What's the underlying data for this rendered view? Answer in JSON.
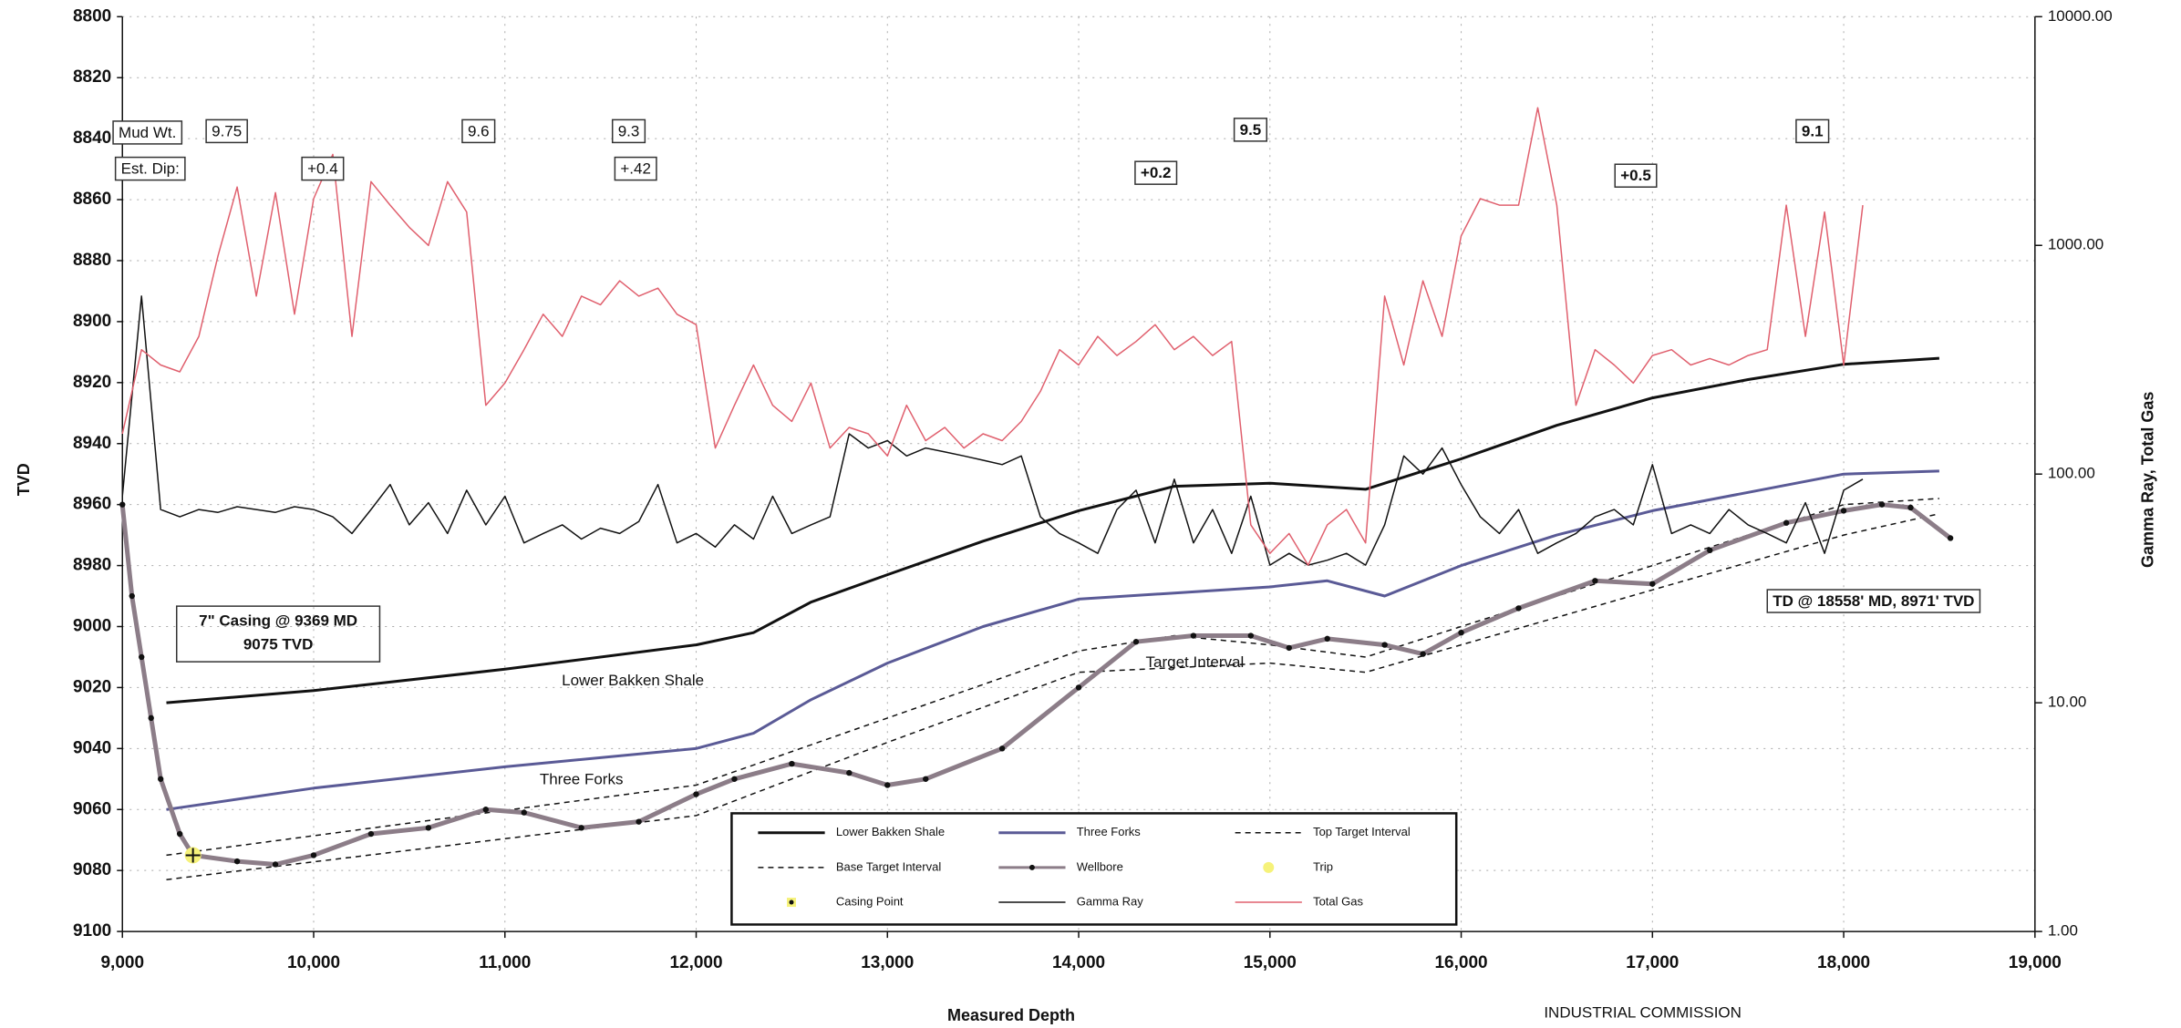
{
  "chart_data": {
    "type": "line",
    "x_label": "Measured Depth",
    "y_label": "TVD",
    "y2_label": "Gamma Ray, Total Gas",
    "xlim": [
      9000,
      19000
    ],
    "xticks": [
      {
        "value": 9000,
        "label": "9,000"
      },
      {
        "value": 10000,
        "label": "10,000"
      },
      {
        "value": 11000,
        "label": "11,000"
      },
      {
        "value": 12000,
        "label": "12,000"
      },
      {
        "value": 13000,
        "label": "13,000"
      },
      {
        "value": 14000,
        "label": "14,000"
      },
      {
        "value": 15000,
        "label": "15,000"
      },
      {
        "value": 16000,
        "label": "16,000"
      },
      {
        "value": 17000,
        "label": "17,000"
      },
      {
        "value": 18000,
        "label": "18,000"
      },
      {
        "value": 19000,
        "label": "19,000"
      }
    ],
    "ylim": [
      8800,
      9100
    ],
    "y_inverted": true,
    "yticks": [
      8800,
      8820,
      8840,
      8860,
      8880,
      8900,
      8920,
      8940,
      8960,
      8980,
      9000,
      9020,
      9040,
      9060,
      9080,
      9100
    ],
    "y2lim": [
      1,
      10000
    ],
    "y2scale": "log",
    "y2ticks": [
      {
        "value": 10000,
        "label": "10000.00"
      },
      {
        "value": 1000,
        "label": "1000.00"
      },
      {
        "value": 100,
        "label": "100.00"
      },
      {
        "value": 10,
        "label": "10.00"
      },
      {
        "value": 1,
        "label": "1.00"
      }
    ],
    "grid": true,
    "series": [
      {
        "name": "Lower Bakken Shale",
        "color": "#111111",
        "style": "line",
        "x": [
          9230,
          10000,
          11000,
          12000,
          12300,
          12600,
          13000,
          13500,
          14000,
          14500,
          15000,
          15500,
          16000,
          16500,
          17000,
          17500,
          18000,
          18500
        ],
        "values": [
          9025,
          9021,
          9014,
          9006,
          9002,
          8992,
          8983,
          8972,
          8962,
          8954,
          8953,
          8955,
          8945,
          8934,
          8925,
          8919,
          8914,
          8912
        ]
      },
      {
        "name": "Three Forks",
        "color": "#5a5a96",
        "style": "line",
        "x": [
          9230,
          10000,
          11000,
          12000,
          12300,
          12600,
          13000,
          13500,
          14000,
          14500,
          15000,
          15300,
          15600,
          16000,
          16500,
          17000,
          17500,
          18000,
          18500
        ],
        "values": [
          9060,
          9053,
          9046,
          9040,
          9035,
          9024,
          9012,
          9000,
          8991,
          8989,
          8987,
          8985,
          8990,
          8980,
          8970,
          8962,
          8956,
          8950,
          8949
        ]
      },
      {
        "name": "Top Target Interval",
        "color": "#111111",
        "style": "dashed",
        "x": [
          9230,
          12000,
          13000,
          14000,
          14500,
          15000,
          15500,
          16000,
          17000,
          18000,
          18500
        ],
        "values": [
          9075,
          9052,
          9030,
          9008,
          9003,
          9006,
          9010,
          9000,
          8980,
          8960,
          8958
        ]
      },
      {
        "name": "Base Target Interval",
        "color": "#111111",
        "style": "dashed",
        "x": [
          9230,
          12000,
          13000,
          14000,
          15000,
          15500,
          16000,
          17000,
          18000,
          18500
        ],
        "values": [
          9083,
          9062,
          9038,
          9015,
          9012,
          9015,
          9006,
          8988,
          8970,
          8963
        ]
      },
      {
        "name": "Wellbore",
        "color": "#8c7d88",
        "style": "line-dots",
        "x": [
          9000,
          9050,
          9100,
          9150,
          9200,
          9300,
          9369,
          9600,
          9800,
          10000,
          10300,
          10600,
          10900,
          11100,
          11400,
          11700,
          12000,
          12200,
          12500,
          12800,
          13000,
          13200,
          13600,
          14000,
          14300,
          14600,
          14900,
          15100,
          15300,
          15600,
          15800,
          16000,
          16300,
          16700,
          17000,
          17300,
          17700,
          18000,
          18200,
          18350,
          18558
        ],
        "values": [
          8960,
          8990,
          9010,
          9030,
          9050,
          9068,
          9075,
          9077,
          9078,
          9075,
          9068,
          9066,
          9060,
          9061,
          9066,
          9064,
          9055,
          9050,
          9045,
          9048,
          9052,
          9050,
          9040,
          9020,
          9005,
          9003,
          9003,
          9007,
          9004,
          9006,
          9009,
          9002,
          8994,
          8985,
          8986,
          8975,
          8966,
          8962,
          8960,
          8961,
          8971
        ]
      },
      {
        "name": "Trip",
        "color": "#f6f27a",
        "style": "point",
        "x": [
          9369
        ],
        "values": [
          9075
        ]
      },
      {
        "name": "Casing Point",
        "color": "#111111",
        "style": "cross",
        "x": [
          9369
        ],
        "values": [
          9075
        ]
      },
      {
        "name": "Gamma Ray",
        "color": "#111111",
        "style": "thin",
        "axis": "y2",
        "x": [
          9000,
          9100,
          9200,
          9300,
          9400,
          9500,
          9600,
          9700,
          9800,
          9900,
          10000,
          10100,
          10200,
          10300,
          10400,
          10500,
          10600,
          10700,
          10800,
          10900,
          11000,
          11100,
          11200,
          11300,
          11400,
          11500,
          11600,
          11700,
          11800,
          11900,
          12000,
          12100,
          12200,
          12300,
          12400,
          12500,
          12600,
          12700,
          12800,
          12900,
          13000,
          13100,
          13200,
          13300,
          13400,
          13500,
          13600,
          13700,
          13800,
          13900,
          14000,
          14100,
          14200,
          14300,
          14400,
          14500,
          14600,
          14700,
          14800,
          14900,
          15000,
          15100,
          15200,
          15300,
          15400,
          15500,
          15600,
          15700,
          15800,
          15900,
          16000,
          16100,
          16200,
          16300,
          16400,
          16500,
          16600,
          16700,
          16800,
          16900,
          17000,
          17100,
          17200,
          17300,
          17400,
          17500,
          17600,
          17700,
          17800,
          17900,
          18000,
          18100
        ],
        "values": [
          80,
          600,
          70,
          65,
          70,
          68,
          72,
          70,
          68,
          72,
          70,
          65,
          55,
          70,
          90,
          60,
          75,
          55,
          85,
          60,
          80,
          50,
          55,
          60,
          52,
          58,
          55,
          62,
          90,
          50,
          55,
          48,
          60,
          52,
          80,
          55,
          60,
          65,
          150,
          130,
          140,
          120,
          130,
          125,
          120,
          115,
          110,
          120,
          65,
          55,
          50,
          45,
          70,
          85,
          50,
          95,
          50,
          70,
          45,
          80,
          40,
          45,
          40,
          42,
          45,
          40,
          60,
          120,
          100,
          130,
          90,
          65,
          55,
          70,
          45,
          50,
          55,
          65,
          70,
          60,
          110,
          55,
          60,
          55,
          70,
          60,
          55,
          50,
          75,
          45,
          85,
          95
        ]
      },
      {
        "name": "Total Gas",
        "color": "#e0606e",
        "style": "thin",
        "axis": "y2",
        "x": [
          9000,
          9100,
          9200,
          9300,
          9400,
          9500,
          9600,
          9700,
          9800,
          9900,
          10000,
          10100,
          10200,
          10300,
          10400,
          10500,
          10600,
          10700,
          10800,
          10900,
          11000,
          11100,
          11200,
          11300,
          11400,
          11500,
          11600,
          11700,
          11800,
          11900,
          12000,
          12100,
          12200,
          12300,
          12400,
          12500,
          12600,
          12700,
          12800,
          12900,
          13000,
          13100,
          13200,
          13300,
          13400,
          13500,
          13600,
          13700,
          13800,
          13900,
          14000,
          14100,
          14200,
          14300,
          14400,
          14500,
          14600,
          14700,
          14800,
          14900,
          15000,
          15100,
          15200,
          15300,
          15400,
          15500,
          15600,
          15700,
          15800,
          15900,
          16000,
          16100,
          16200,
          16300,
          16400,
          16500,
          16600,
          16700,
          16800,
          16900,
          17000,
          17100,
          17200,
          17300,
          17400,
          17500,
          17600,
          17700,
          17800,
          17900,
          18000,
          18100
        ],
        "values": [
          150,
          350,
          300,
          280,
          400,
          900,
          1800,
          600,
          1700,
          500,
          1600,
          2500,
          400,
          1900,
          1500,
          1200,
          1000,
          1900,
          1400,
          200,
          250,
          350,
          500,
          400,
          600,
          550,
          700,
          600,
          650,
          500,
          450,
          130,
          200,
          300,
          200,
          170,
          250,
          130,
          160,
          150,
          120,
          200,
          140,
          160,
          130,
          150,
          140,
          170,
          230,
          350,
          300,
          400,
          330,
          380,
          450,
          350,
          400,
          330,
          380,
          60,
          45,
          55,
          40,
          60,
          70,
          50,
          600,
          300,
          700,
          400,
          1100,
          1600,
          1500,
          1500,
          4000,
          1500,
          200,
          350,
          300,
          250,
          330,
          350,
          300,
          320,
          300,
          330,
          350,
          1500,
          400,
          1400,
          300,
          1500
        ]
      }
    ],
    "annotations": [
      "Mud Wt.",
      "9.75",
      "9.6",
      "9.3",
      "9.5",
      "9.1",
      "Est. Dip:",
      "+0.4",
      "+.42",
      "+0.2",
      "+0.5",
      "7\" Casing @ 9369 MD",
      "9075 TVD",
      "TD @ 18558' MD, 8971' TVD",
      "Lower Bakken Shale",
      "Three Forks",
      "Target Interval",
      "INDUSTRIAL COMMISSION"
    ]
  }
}
